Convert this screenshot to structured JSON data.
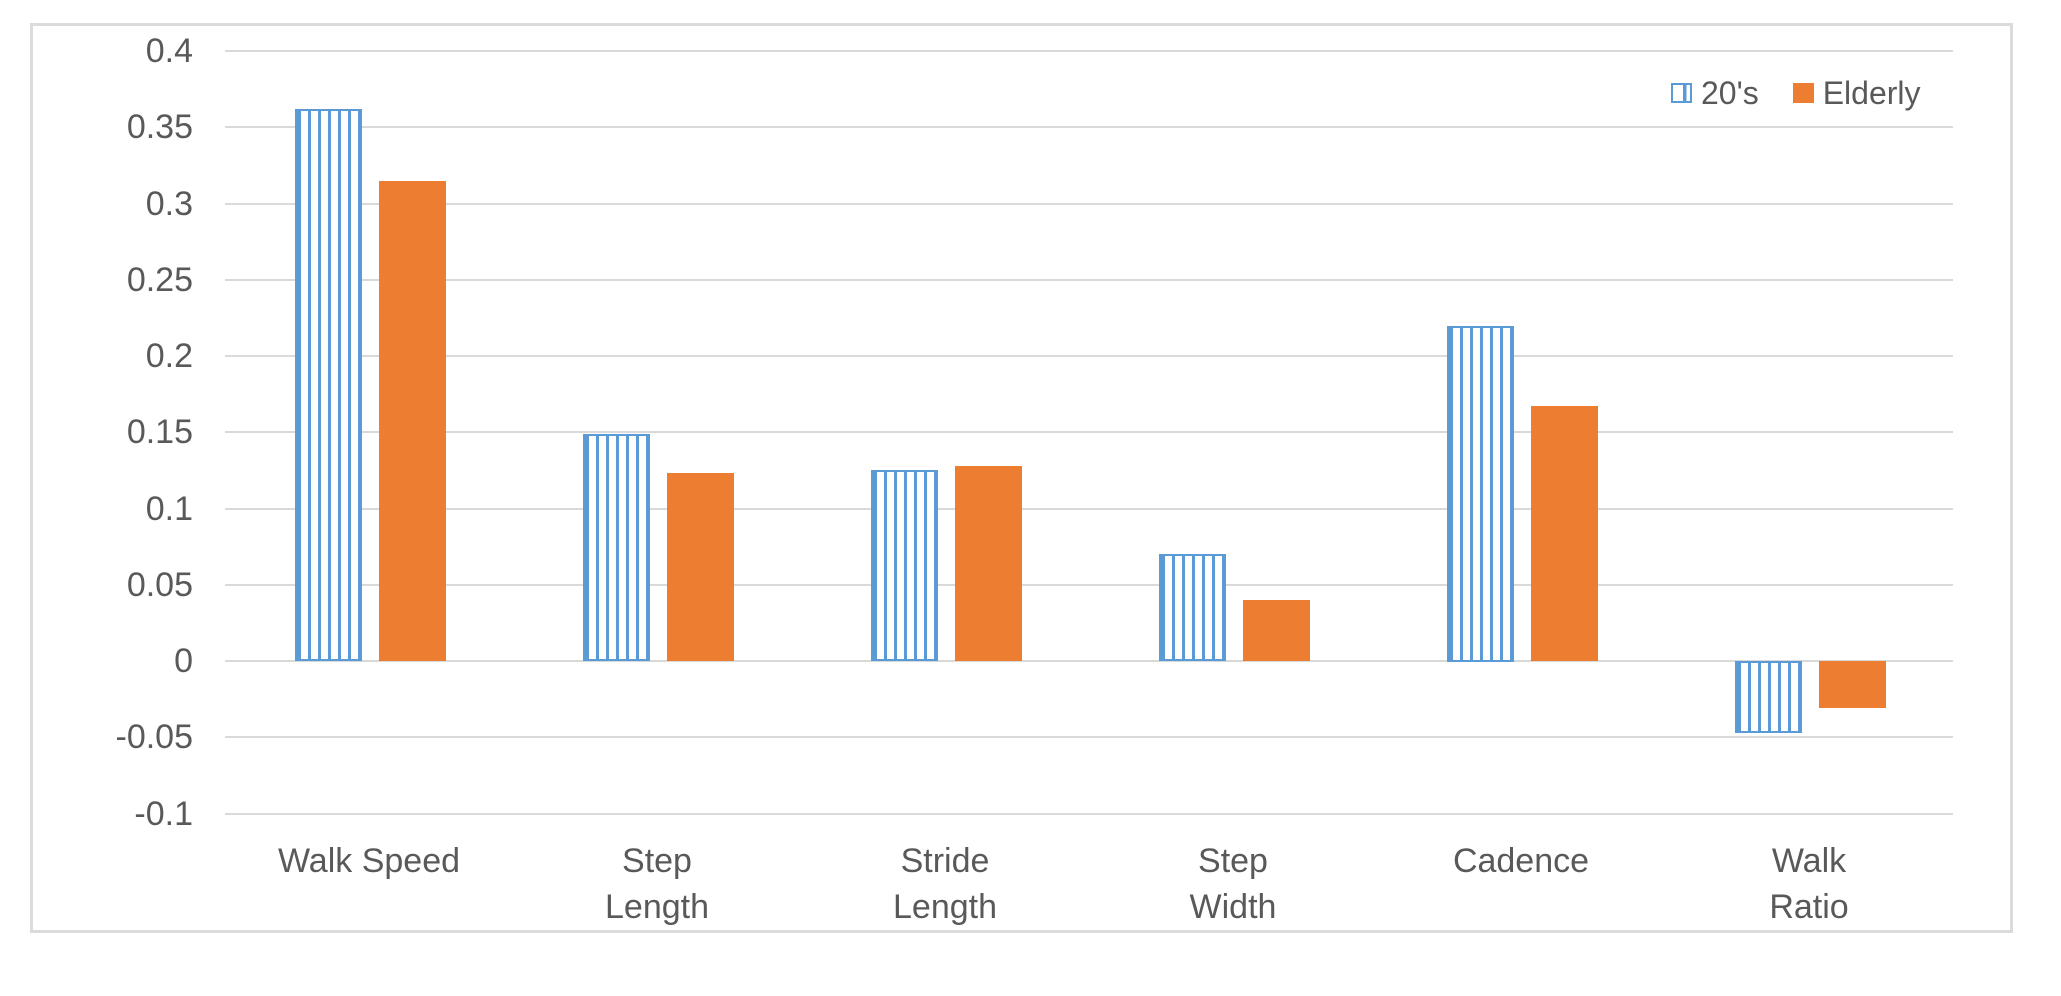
{
  "chart_data": {
    "type": "bar",
    "title": "",
    "xlabel": "",
    "ylabel": "",
    "categories": [
      "Walk Speed",
      "Step\nLength",
      "Stride\nLength",
      "Step\nWidth",
      "Cadence",
      "Walk\nRatio"
    ],
    "series": [
      {
        "name": "20's",
        "style": "striped",
        "color": "#5B9BD5",
        "values": [
          0.362,
          0.149,
          0.125,
          0.07,
          0.22,
          -0.047
        ]
      },
      {
        "name": "Elderly",
        "style": "solid",
        "color": "#ED7D31",
        "values": [
          0.315,
          0.123,
          0.128,
          0.04,
          0.167,
          -0.031
        ]
      }
    ],
    "ylim": [
      -0.1,
      0.4
    ],
    "ytick_step": 0.05,
    "ytick_labels": [
      "0.4",
      "0.35",
      "0.3",
      "0.25",
      "0.2",
      "0.15",
      "0.1",
      "0.05",
      "0",
      "-0.05",
      "-0.1"
    ],
    "grid": true,
    "legend_position": "top-right",
    "colors": {
      "grid": "#D9D9D9",
      "border": "#DBDBDB",
      "text": "#595959",
      "series_blue": "#5B9BD5",
      "series_orange": "#ED7D31",
      "plot_background": "#ffffff"
    }
  }
}
